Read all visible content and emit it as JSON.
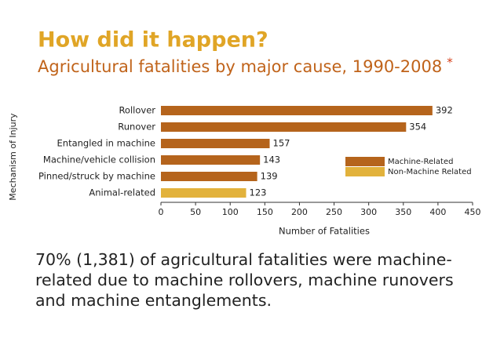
{
  "chart_data": {
    "type": "bar",
    "orientation": "horizontal",
    "title": "How did it happen?",
    "subtitle": "Agricultural fatalities by major cause, 1990-2008",
    "subtitle_note": "*",
    "categories": [
      "Rollover",
      "Runover",
      "Entangled in machine",
      "Machine/vehicle collision",
      "Pinned/struck by machine",
      "Animal-related"
    ],
    "series": [
      {
        "name": "Machine-Related",
        "color": "#b5641c",
        "values": [
          392,
          354,
          157,
          143,
          139,
          null
        ]
      },
      {
        "name": "Non-Machine Related",
        "color": "#e2b23c",
        "values": [
          null,
          null,
          null,
          null,
          null,
          123
        ]
      }
    ],
    "xlim": [
      0,
      450
    ],
    "xticks": [
      0,
      50,
      100,
      150,
      200,
      250,
      300,
      350,
      400,
      450
    ],
    "x_label": "Number of Fatalities",
    "y_label": "Mechanism of Injury",
    "legend": "right"
  },
  "note": "70% (1,381) of agricultural fatalities were machine-related due to machine rollovers, machine runovers and machine entanglements."
}
